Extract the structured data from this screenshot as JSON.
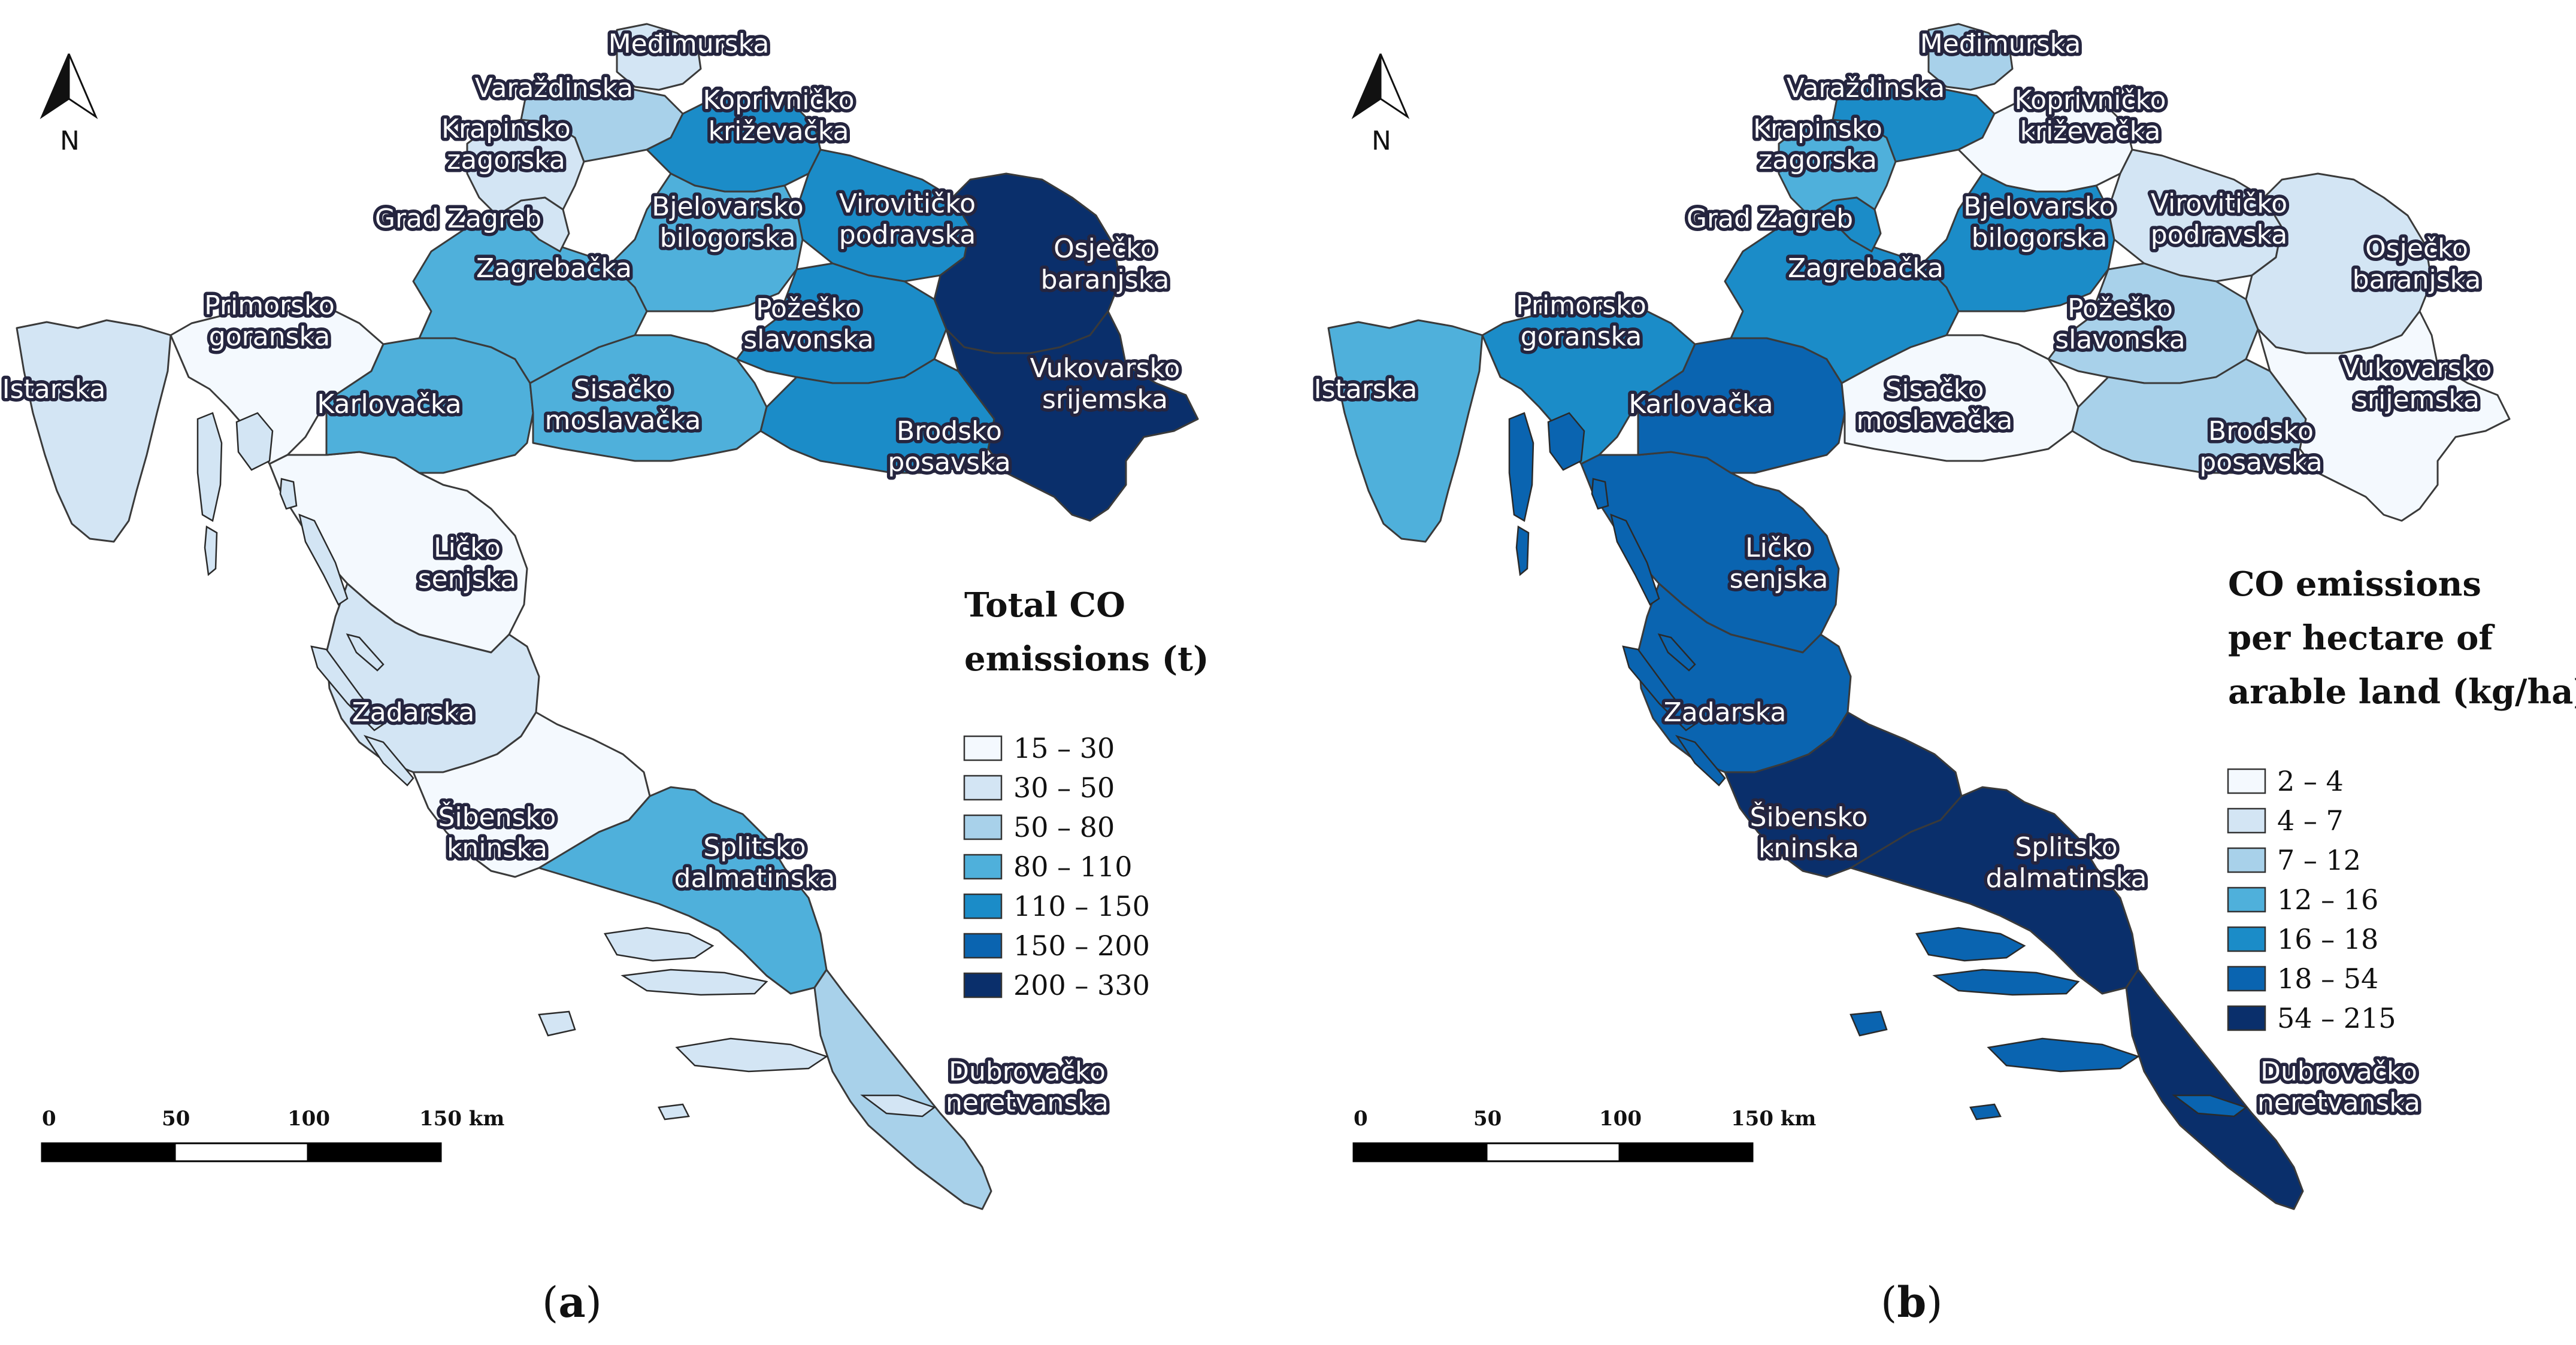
{
  "north_label": "N",
  "scale_bar": {
    "ticks": [
      "0",
      "50",
      "100",
      "150 km"
    ]
  },
  "panels": [
    {
      "id": "a",
      "caption": {
        "open": "(",
        "letter": "a",
        "close": ")"
      },
      "legend": {
        "title_lines": [
          "Total CO",
          "emissions (t)"
        ],
        "classes": [
          {
            "label": "15 – 30",
            "color": "#f4f9fe"
          },
          {
            "label": "30 – 50",
            "color": "#d3e5f4"
          },
          {
            "label": "50 – 80",
            "color": "#a8d1ea"
          },
          {
            "label": "80 – 110",
            "color": "#4fb0db"
          },
          {
            "label": "110 – 150",
            "color": "#1b8cc8"
          },
          {
            "label": "150 – 200",
            "color": "#0a64b0"
          },
          {
            "label": "200 – 330",
            "color": "#0a2f6b"
          }
        ]
      },
      "regions": {
        "istarska": 1,
        "primorsko": 0,
        "licko": 0,
        "zadarska": 1,
        "sibensko": 0,
        "splitsko": 3,
        "dubrovacko": 2,
        "karlovacka": 3,
        "sisacko": 3,
        "zagrebacka": 3,
        "zagreb": 1,
        "krapinsko": 1,
        "varazdinska": 2,
        "medimurska": 1,
        "koprivnicko": 4,
        "bjelovarsko": 3,
        "viroviticko": 4,
        "pozesko": 4,
        "brodsko": 4,
        "osjecko": 6,
        "vukovarsko": 6
      },
      "islands_class": 1
    },
    {
      "id": "b",
      "caption": {
        "open": "(",
        "letter": "b",
        "close": ")"
      },
      "legend": {
        "title_lines": [
          "CO emissions",
          "per hectare of",
          "arable land (kg/ha)"
        ],
        "classes": [
          {
            "label": "2 – 4",
            "color": "#f4f9fe"
          },
          {
            "label": "4 – 7",
            "color": "#d3e5f4"
          },
          {
            "label": "7 – 12",
            "color": "#a8d1ea"
          },
          {
            "label": "12 – 16",
            "color": "#4fb0db"
          },
          {
            "label": "16 – 18",
            "color": "#1b8cc8"
          },
          {
            "label": "18 – 54",
            "color": "#0a64b0"
          },
          {
            "label": "54 – 215",
            "color": "#0a2f6b"
          }
        ]
      },
      "regions": {
        "istarska": 3,
        "primorsko": 4,
        "licko": 5,
        "zadarska": 5,
        "sibensko": 6,
        "splitsko": 6,
        "dubrovacko": 6,
        "karlovacka": 5,
        "sisacko": 0,
        "zagrebacka": 4,
        "zagreb": 4,
        "krapinsko": 3,
        "varazdinska": 4,
        "medimurska": 2,
        "koprivnicko": 0,
        "bjelovarsko": 4,
        "viroviticko": 1,
        "pozesko": 2,
        "brodsko": 2,
        "osjecko": 1,
        "vukovarsko": 0
      },
      "islands_class": 5
    }
  ],
  "county_labels": [
    {
      "key": "medimurska",
      "lines": [
        "Međimurska"
      ]
    },
    {
      "key": "varazdinska",
      "lines": [
        "Varaždinska"
      ]
    },
    {
      "key": "koprivnicko",
      "lines": [
        "Koprivničko",
        "križevačka"
      ]
    },
    {
      "key": "krapinsko",
      "lines": [
        "Krapinsko",
        "zagorska"
      ]
    },
    {
      "key": "zagreb",
      "lines": [
        "Grad Zagreb"
      ]
    },
    {
      "key": "bjelovarsko",
      "lines": [
        "Bjelovarsko",
        "bilogorska"
      ]
    },
    {
      "key": "viroviticko",
      "lines": [
        "Virovitičko",
        "podravska"
      ]
    },
    {
      "key": "zagrebacka",
      "lines": [
        "Zagrebačka"
      ]
    },
    {
      "key": "osjecko",
      "lines": [
        "Osječko",
        "baranjska"
      ]
    },
    {
      "key": "primorsko",
      "lines": [
        "Primorsko",
        "goranska"
      ]
    },
    {
      "key": "pozesko",
      "lines": [
        "Požeško",
        "slavonska"
      ]
    },
    {
      "key": "istarska",
      "lines": [
        "Istarska"
      ]
    },
    {
      "key": "karlovacka",
      "lines": [
        "Karlovačka"
      ]
    },
    {
      "key": "sisacko",
      "lines": [
        "Sisačko",
        "moslavačka"
      ]
    },
    {
      "key": "vukovarsko",
      "lines": [
        "Vukovarsko",
        "srijemska"
      ]
    },
    {
      "key": "brodsko",
      "lines": [
        "Brodsko",
        "posavska"
      ]
    },
    {
      "key": "licko",
      "lines": [
        "Ličko",
        "senjska"
      ]
    },
    {
      "key": "zadarska",
      "lines": [
        "Zadarska"
      ]
    },
    {
      "key": "sibensko",
      "lines": [
        "Šibensko",
        "kninska"
      ]
    },
    {
      "key": "splitsko",
      "lines": [
        "Splitsko",
        "dalmatinska"
      ]
    },
    {
      "key": "dubrovacko",
      "lines": [
        "Dubrovačko",
        "neretvanska"
      ]
    }
  ]
}
